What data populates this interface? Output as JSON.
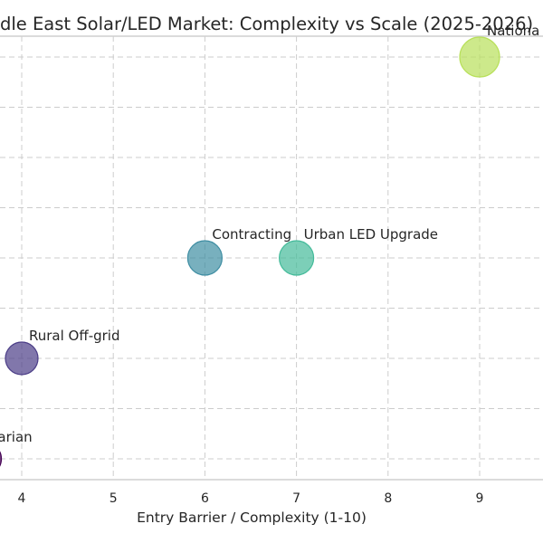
{
  "chart_data": {
    "type": "scatter",
    "title": "dle East Solar/LED Market: Complexity vs Scale (2025-2026)",
    "xlabel": "Entry Barrier / Complexity (1-10)",
    "ylabel": "",
    "xlim": [
      3.75,
      9.7
    ],
    "ylim": [
      0.8,
      5.1
    ],
    "xticks": [
      "4",
      "5",
      "6",
      "7",
      "8",
      "9"
    ],
    "grid": true,
    "points": [
      {
        "label": "Nationa",
        "x": 9,
        "y": 5,
        "color": "#b8e05a"
      },
      {
        "label": "Contracting",
        "x": 6,
        "y": 3,
        "color": "#3f8ea3"
      },
      {
        "label": "Urban LED Upgrade",
        "x": 7,
        "y": 3,
        "color": "#44bb9a"
      },
      {
        "label": "Rural Off-grid",
        "x": 4,
        "y": 2,
        "color": "#4b3d87"
      },
      {
        "label": "tarian",
        "x": 3.6,
        "y": 1,
        "color": "#440154"
      }
    ]
  }
}
